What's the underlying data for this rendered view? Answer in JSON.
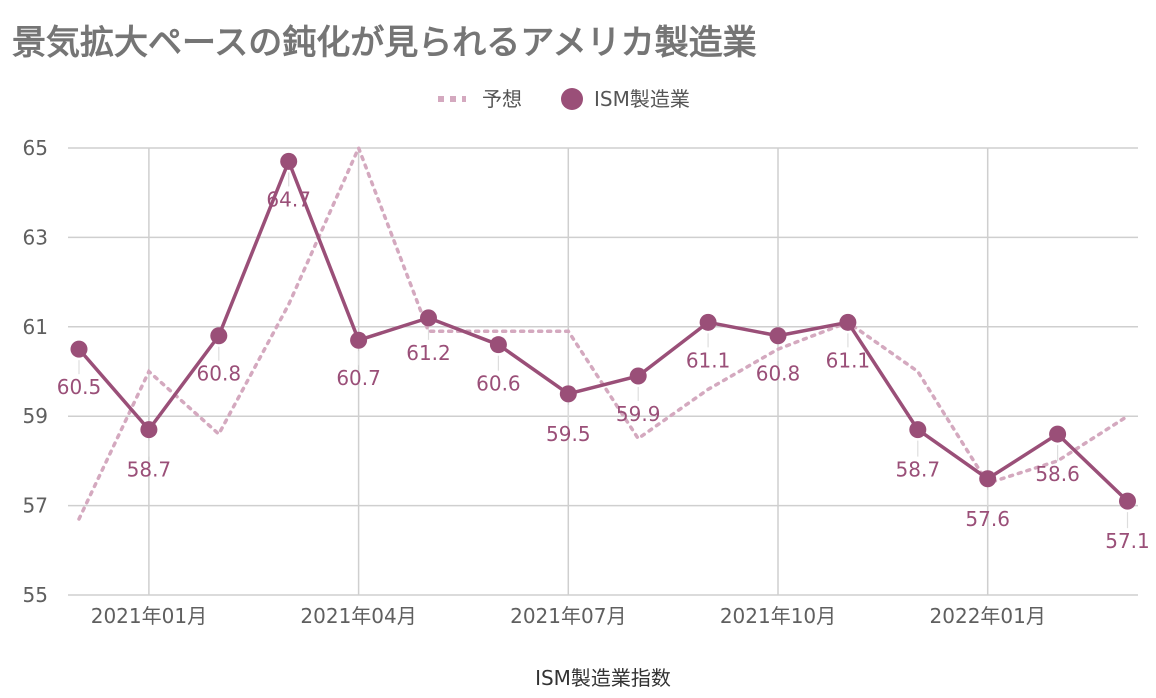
{
  "chart_data": {
    "type": "line",
    "title": "景気拡大ペースの鈍化が見られるアメリカ製造業",
    "xlabel": "ISM製造業指数",
    "ylabel": "",
    "ylim": [
      55,
      65
    ],
    "yticks": [
      55,
      57,
      59,
      61,
      63,
      65
    ],
    "grid": true,
    "legend_position": "top-center",
    "x": [
      "2020-12",
      "2021-01",
      "2021-02",
      "2021-03",
      "2021-04",
      "2021-05",
      "2021-06",
      "2021-07",
      "2021-08",
      "2021-09",
      "2021-10",
      "2021-11",
      "2021-12",
      "2022-01",
      "2022-02",
      "2022-03"
    ],
    "xtick_labels": [
      {
        "x": "2021-01",
        "label": "2021年01月"
      },
      {
        "x": "2021-04",
        "label": "2021年04月"
      },
      {
        "x": "2021-07",
        "label": "2021年07月"
      },
      {
        "x": "2021-10",
        "label": "2021年10月"
      },
      {
        "x": "2022-01",
        "label": "2022年01月"
      }
    ],
    "series": [
      {
        "name": "予想",
        "style": "dotted",
        "color": "#d4a9bf",
        "values": [
          56.7,
          60.0,
          58.6,
          61.5,
          65.0,
          60.9,
          60.9,
          60.9,
          58.5,
          59.6,
          60.5,
          61.1,
          60.0,
          57.5,
          58.0,
          59.0
        ]
      },
      {
        "name": "ISM製造業",
        "style": "solid-markers",
        "color": "#9a4f78",
        "values": [
          60.5,
          58.7,
          60.8,
          64.7,
          60.7,
          61.2,
          60.6,
          59.5,
          59.9,
          61.1,
          60.8,
          61.1,
          58.7,
          57.6,
          58.6,
          57.1
        ],
        "data_labels": [
          "60.5",
          "58.7",
          "60.8",
          "64.7",
          "60.7",
          "61.2",
          "60.6",
          "59.5",
          "59.9",
          "61.1",
          "60.8",
          "61.1",
          "58.7",
          "57.6",
          "58.6",
          "57.1"
        ]
      }
    ]
  }
}
